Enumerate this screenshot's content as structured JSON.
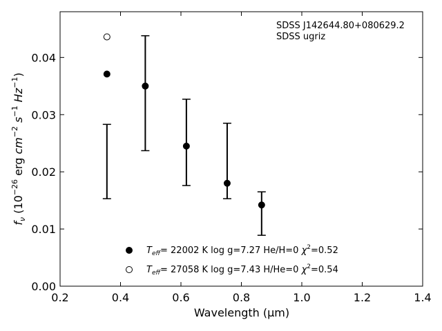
{
  "chart_data": {
    "type": "scatter",
    "xlabel": "Wavelength (μm)",
    "ylabel": "f_ν (10^-26 erg cm^-2 s^-1 Hz^-1)",
    "xlim": [
      0.2,
      1.4
    ],
    "ylim": [
      0.0,
      0.048
    ],
    "x_ticks": [
      0.2,
      0.4,
      0.6,
      0.8,
      1.0,
      1.2,
      1.4
    ],
    "x_tick_labels": [
      "0.2",
      "0.4",
      "0.6",
      "0.8",
      "1.0",
      "1.2",
      "1.4"
    ],
    "y_ticks": [
      0.0,
      0.01,
      0.02,
      0.03,
      0.04
    ],
    "y_tick_labels": [
      "0.00",
      "0.01",
      "0.02",
      "0.03",
      "0.04"
    ],
    "grid": false,
    "annotation": [
      "SDSS J142644.80+080629.2",
      "SDSS ugriz"
    ],
    "observed": {
      "x": [
        0.355,
        0.482,
        0.618,
        0.753,
        0.867
      ],
      "err_low": [
        0.0153,
        0.0237,
        0.0176,
        0.0153,
        0.0089
      ],
      "err_high": [
        0.0283,
        0.0438,
        0.0327,
        0.0285,
        0.0165
      ]
    },
    "series": [
      {
        "marker": "filled",
        "label_parts": {
          "teff": "T",
          "sub": "eff",
          "rest": "= 22002 K  log g=7.27  He/H=0  ",
          "chi": "χ",
          "sup": "2",
          "val": "=0.52"
        },
        "x": [
          0.355,
          0.482,
          0.618,
          0.753,
          0.867
        ],
        "y": [
          0.0371,
          0.035,
          0.0245,
          0.018,
          0.0142
        ]
      },
      {
        "marker": "open",
        "label_parts": {
          "teff": "T",
          "sub": "eff",
          "rest": "= 27058 K  log g=7.43  H/He=0  ",
          "chi": "χ",
          "sup": "2",
          "val": "=0.54"
        },
        "x": [
          0.355
        ],
        "y": [
          0.0436
        ]
      }
    ]
  }
}
